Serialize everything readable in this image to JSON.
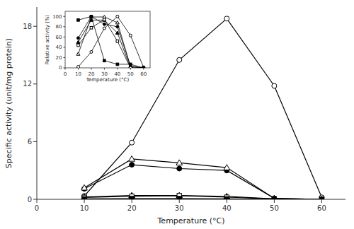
{
  "chart_data": [
    {
      "type": "line",
      "xlabel": "Temperature (°C)",
      "ylabel": "Specific activity (unit/mg protein)",
      "x": [
        10,
        20,
        30,
        40,
        50,
        60
      ],
      "series": [
        {
          "color": "black",
          "marker": "open-circle",
          "line_style": "solid",
          "values": [
            0.35,
            5.9,
            14.5,
            18.8,
            11.8,
            0.2
          ]
        },
        {
          "color": "black",
          "marker": "filled-circle",
          "line_style": "solid",
          "values": [
            1.1,
            3.6,
            3.2,
            3.0,
            0.1,
            0.0
          ]
        },
        {
          "color": "black",
          "marker": "open-triangle",
          "line_style": "solid",
          "values": [
            1.2,
            4.2,
            3.8,
            3.3,
            0.1,
            0.0
          ]
        },
        {
          "color": "black",
          "marker": "filled-triangle",
          "line_style": "solid",
          "values": [
            0.25,
            0.4,
            0.4,
            0.3,
            0.05,
            0.0
          ]
        },
        {
          "color": "black",
          "marker": "open-square",
          "line_style": "solid",
          "values": [
            0.2,
            0.32,
            0.38,
            0.22,
            0.05,
            0.0
          ]
        },
        {
          "color": "black",
          "marker": "filled-square",
          "line_style": "solid",
          "values": [
            0.05,
            0.08,
            0.08,
            0.05,
            0.0,
            0.0
          ]
        }
      ],
      "xlim": [
        0,
        65
      ],
      "xticks": [
        0,
        10,
        20,
        30,
        40,
        50,
        60
      ],
      "ylim": [
        0,
        20
      ],
      "yticks": [
        0,
        6,
        12,
        18
      ],
      "grid": false
    },
    {
      "type": "line",
      "xlabel": "Temperature (°C)",
      "ylabel": "Relative activity (%)",
      "x": [
        10,
        20,
        30,
        40,
        50,
        60
      ],
      "series": [
        {
          "color": "black",
          "marker": "open-circle",
          "line_style": "solid",
          "values": [
            2,
            31,
            77,
            100,
            63,
            1
          ]
        },
        {
          "color": "black",
          "marker": "filled-circle",
          "line_style": "solid",
          "values": [
            58,
            100,
            85,
            80,
            3,
            0
          ]
        },
        {
          "color": "black",
          "marker": "open-triangle",
          "line_style": "solid",
          "values": [
            27,
            99,
            99,
            88,
            3,
            0
          ]
        },
        {
          "color": "black",
          "marker": "filled-triangle",
          "line_style": "solid",
          "values": [
            50,
            93,
            93,
            68,
            0,
            0
          ]
        },
        {
          "color": "black",
          "marker": "open-square",
          "line_style": "solid",
          "values": [
            44,
            78,
            94,
            52,
            0,
            0
          ]
        },
        {
          "color": "black",
          "marker": "filled-square",
          "line_style": "solid",
          "values": [
            93,
            100,
            14,
            7,
            7,
            0
          ]
        }
      ],
      "xlim": [
        0,
        65
      ],
      "xticks": [
        0,
        10,
        20,
        30,
        40,
        50,
        60
      ],
      "ylim": [
        0,
        110
      ],
      "yticks": [
        0,
        20,
        40,
        60,
        80,
        100
      ],
      "grid": false
    }
  ]
}
